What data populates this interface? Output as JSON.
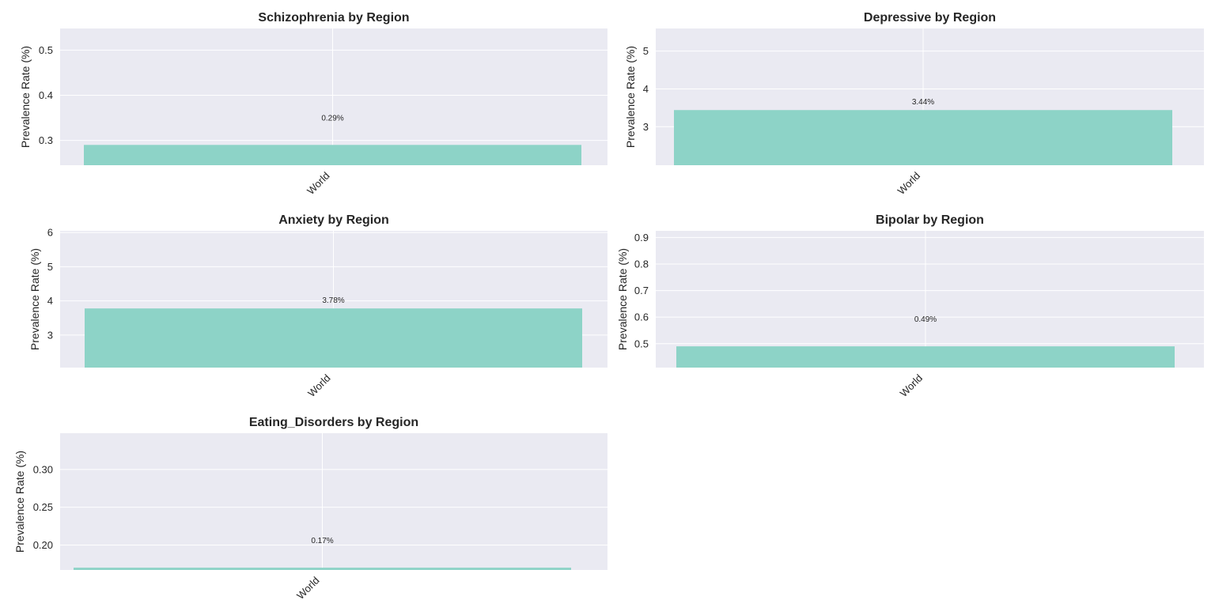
{
  "chart_data": [
    {
      "type": "bar",
      "title": "Schizophrenia by Region",
      "ylabel": "Prevalence Rate (%)",
      "categories": [
        "World"
      ],
      "values": [
        0.29
      ],
      "data_labels": [
        "0.29%"
      ],
      "ylim": [
        0.245,
        0.548
      ],
      "yticks": [
        0.3,
        0.4,
        0.5
      ],
      "ytick_labels": [
        "0.3",
        "0.4",
        "0.5"
      ],
      "grid": true,
      "color": "#8dd3c7"
    },
    {
      "type": "bar",
      "title": "Depressive by Region",
      "ylabel": "Prevalence Rate (%)",
      "categories": [
        "World"
      ],
      "values": [
        3.44
      ],
      "data_labels": [
        "3.44%"
      ],
      "ylim": [
        1.98,
        5.6
      ],
      "yticks": [
        3,
        4,
        5
      ],
      "ytick_labels": [
        "3",
        "4",
        "5"
      ],
      "grid": true,
      "color": "#8dd3c7"
    },
    {
      "type": "bar",
      "title": "Anxiety by Region",
      "ylabel": "Prevalence Rate (%)",
      "categories": [
        "World"
      ],
      "values": [
        3.78
      ],
      "data_labels": [
        "3.78%"
      ],
      "ylim": [
        2.05,
        6.05
      ],
      "yticks": [
        3,
        4,
        5,
        6
      ],
      "ytick_labels": [
        "3",
        "4",
        "5",
        "6"
      ],
      "grid": true,
      "color": "#8dd3c7"
    },
    {
      "type": "bar",
      "title": "Bipolar by Region",
      "ylabel": "Prevalence Rate (%)",
      "categories": [
        "World"
      ],
      "values": [
        0.49
      ],
      "data_labels": [
        "0.49%"
      ],
      "ylim": [
        0.41,
        0.925
      ],
      "yticks": [
        0.5,
        0.6,
        0.7,
        0.8,
        0.9
      ],
      "ytick_labels": [
        "0.5",
        "0.6",
        "0.7",
        "0.8",
        "0.9"
      ],
      "grid": true,
      "color": "#8dd3c7"
    },
    {
      "type": "bar",
      "title": "Eating_Disorders by Region",
      "ylabel": "Prevalence Rate (%)",
      "categories": [
        "World"
      ],
      "values": [
        0.17
      ],
      "data_labels": [
        "0.17%"
      ],
      "ylim": [
        0.167,
        0.348
      ],
      "yticks": [
        0.2,
        0.25,
        0.3
      ],
      "ytick_labels": [
        "0.20",
        "0.25",
        "0.30"
      ],
      "grid": true,
      "color": "#8dd3c7"
    }
  ]
}
